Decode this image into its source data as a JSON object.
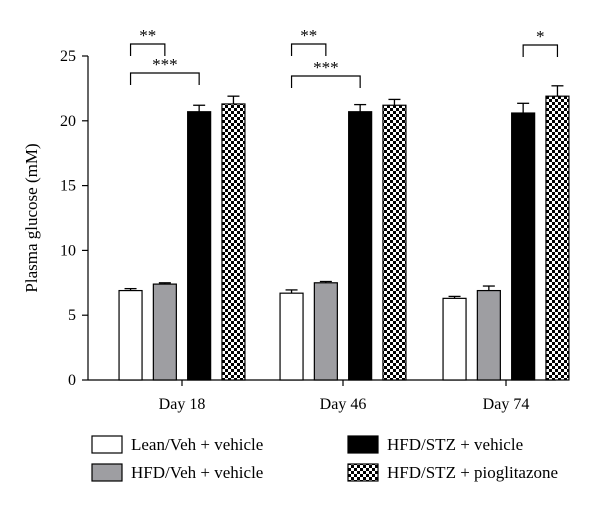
{
  "chart_data": {
    "type": "bar",
    "title": "",
    "xlabel": "",
    "ylabel": "Plasma glucose (mM)",
    "ylim": [
      0,
      25
    ],
    "yticks": [
      0,
      5,
      10,
      15,
      20,
      25
    ],
    "categories": [
      "Day 18",
      "Day 46",
      "Day 74"
    ],
    "legend_position": "bottom",
    "grid": false,
    "series": [
      {
        "name": "Lean/Veh + vehicle",
        "fill": "white",
        "values": [
          6.9,
          6.7,
          6.3
        ],
        "errors": [
          0.15,
          0.25,
          0.15
        ]
      },
      {
        "name": "HFD/Veh + vehicle",
        "fill": "gray",
        "values": [
          7.4,
          7.5,
          6.9
        ],
        "errors": [
          0.1,
          0.1,
          0.35
        ]
      },
      {
        "name": "HFD/STZ + vehicle",
        "fill": "black",
        "values": [
          20.7,
          20.7,
          20.6
        ],
        "errors": [
          0.5,
          0.55,
          0.75
        ]
      },
      {
        "name": "HFD/STZ + pioglitazone",
        "fill": "checker",
        "values": [
          21.3,
          21.2,
          21.9
        ],
        "errors": [
          0.6,
          0.45,
          0.8
        ]
      }
    ],
    "annotations": [
      {
        "label": "**",
        "category": 0,
        "from_series": 0,
        "to_series": 1
      },
      {
        "label": "***",
        "category": 0,
        "from_series": 0,
        "to_series": 2
      },
      {
        "label": "**",
        "category": 1,
        "from_series": 0,
        "to_series": 1
      },
      {
        "label": "***",
        "category": 1,
        "from_series": 0,
        "to_series": 2
      },
      {
        "label": "*",
        "category": 2,
        "from_series": 2,
        "to_series": 3
      }
    ],
    "colors": {
      "white": "#ffffff",
      "gray": "#9e9ea2",
      "black": "#000000",
      "outline": "#000000"
    }
  }
}
